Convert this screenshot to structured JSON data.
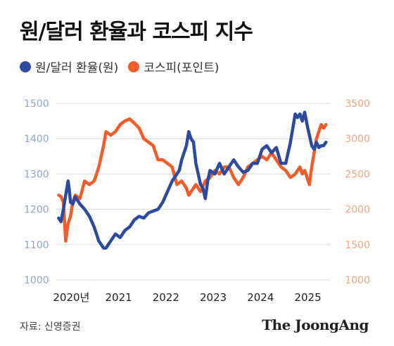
{
  "title": "원/달러 환율과 코스피 지수",
  "source": "자료: 신영증권",
  "brand": "The JoongAng",
  "colors": {
    "fx": "#2e4a9e",
    "kospi": "#f25c2a",
    "left_axis": "#8fa3c9",
    "right_axis": "#f5a27c",
    "grid": "#d9d9d9"
  },
  "legend": [
    {
      "label": "원/달러 환율(원)",
      "color": "#2e4a9e"
    },
    {
      "label": "코스피(포인트)",
      "color": "#f25c2a"
    }
  ],
  "chart_data": {
    "type": "line",
    "x_ticks": [
      "2020년",
      "2021",
      "2022",
      "2023",
      "2024",
      "2025"
    ],
    "x_tick_values": [
      2020.0,
      2021.0,
      2022.0,
      2023.0,
      2024.0,
      2025.0
    ],
    "xlim": [
      2019.95,
      2025.75
    ],
    "y_left": {
      "ticks": [
        "1500",
        "1400",
        "1300",
        "1200",
        "1100",
        "1000"
      ],
      "range": [
        1000,
        1500
      ]
    },
    "y_right": {
      "ticks": [
        "3500",
        "3000",
        "2500",
        "2000",
        "1500",
        "1000"
      ],
      "range": [
        1000,
        3500
      ]
    },
    "grid": "horizontal",
    "legend_position": "top-left",
    "series": [
      {
        "name": "원/달러 환율(원)",
        "axis": "left",
        "x": [
          2020.0,
          2020.05,
          2020.1,
          2020.15,
          2020.2,
          2020.22,
          2020.25,
          2020.3,
          2020.35,
          2020.45,
          2020.55,
          2020.65,
          2020.75,
          2020.85,
          2020.95,
          2021.0,
          2021.1,
          2021.2,
          2021.3,
          2021.4,
          2021.5,
          2021.6,
          2021.7,
          2021.8,
          2021.9,
          2022.0,
          2022.1,
          2022.2,
          2022.3,
          2022.4,
          2022.5,
          2022.55,
          2022.6,
          2022.7,
          2022.75,
          2022.8,
          2022.85,
          2022.9,
          2023.0,
          2023.05,
          2023.1,
          2023.15,
          2023.2,
          2023.3,
          2023.4,
          2023.5,
          2023.6,
          2023.7,
          2023.8,
          2023.9,
          2024.0,
          2024.1,
          2024.2,
          2024.3,
          2024.4,
          2024.5,
          2024.6,
          2024.7,
          2024.8,
          2024.9,
          2025.0,
          2025.05,
          2025.1,
          2025.15,
          2025.2,
          2025.25,
          2025.3,
          2025.35,
          2025.4,
          2025.45,
          2025.5,
          2025.55,
          2025.6,
          2025.65
        ],
        "values": [
          1175,
          1165,
          1200,
          1240,
          1280,
          1260,
          1220,
          1215,
          1235,
          1215,
          1200,
          1180,
          1150,
          1110,
          1090,
          1090,
          1110,
          1130,
          1120,
          1140,
          1150,
          1170,
          1180,
          1175,
          1190,
          1195,
          1200,
          1220,
          1250,
          1280,
          1300,
          1310,
          1340,
          1380,
          1420,
          1400,
          1390,
          1330,
          1270,
          1260,
          1230,
          1280,
          1310,
          1300,
          1330,
          1300,
          1320,
          1340,
          1320,
          1305,
          1310,
          1330,
          1330,
          1370,
          1380,
          1360,
          1375,
          1330,
          1330,
          1390,
          1470,
          1460,
          1470,
          1450,
          1475,
          1440,
          1410,
          1380,
          1370,
          1390,
          1375,
          1380,
          1380,
          1390
        ]
      },
      {
        "name": "코스피(포인트)",
        "axis": "right",
        "x": [
          2020.0,
          2020.05,
          2020.1,
          2020.15,
          2020.2,
          2020.25,
          2020.3,
          2020.35,
          2020.45,
          2020.55,
          2020.65,
          2020.75,
          2020.85,
          2020.9,
          2020.95,
          2021.0,
          2021.1,
          2021.2,
          2021.3,
          2021.4,
          2021.5,
          2021.6,
          2021.7,
          2021.8,
          2021.9,
          2022.0,
          2022.1,
          2022.2,
          2022.3,
          2022.4,
          2022.5,
          2022.6,
          2022.7,
          2022.75,
          2022.8,
          2022.9,
          2023.0,
          2023.1,
          2023.2,
          2023.3,
          2023.4,
          2023.5,
          2023.6,
          2023.7,
          2023.8,
          2023.9,
          2024.0,
          2024.1,
          2024.2,
          2024.3,
          2024.4,
          2024.5,
          2024.6,
          2024.7,
          2024.8,
          2024.9,
          2025.0,
          2025.1,
          2025.15,
          2025.2,
          2025.25,
          2025.3,
          2025.35,
          2025.4,
          2025.45,
          2025.5,
          2025.55,
          2025.6,
          2025.65
        ],
        "values": [
          2200,
          2180,
          2100,
          1550,
          1800,
          1900,
          2100,
          2200,
          2150,
          2400,
          2350,
          2400,
          2600,
          2750,
          2900,
          3100,
          3050,
          3100,
          3200,
          3250,
          3280,
          3220,
          3150,
          3000,
          2950,
          2900,
          2700,
          2700,
          2650,
          2600,
          2350,
          2400,
          2300,
          2200,
          2250,
          2350,
          2250,
          2400,
          2450,
          2550,
          2500,
          2600,
          2600,
          2450,
          2350,
          2450,
          2600,
          2650,
          2700,
          2750,
          2700,
          2800,
          2700,
          2600,
          2550,
          2450,
          2500,
          2600,
          2500,
          2550,
          2450,
          2350,
          2600,
          2800,
          3000,
          3100,
          3200,
          3150,
          3200
        ]
      }
    ]
  }
}
